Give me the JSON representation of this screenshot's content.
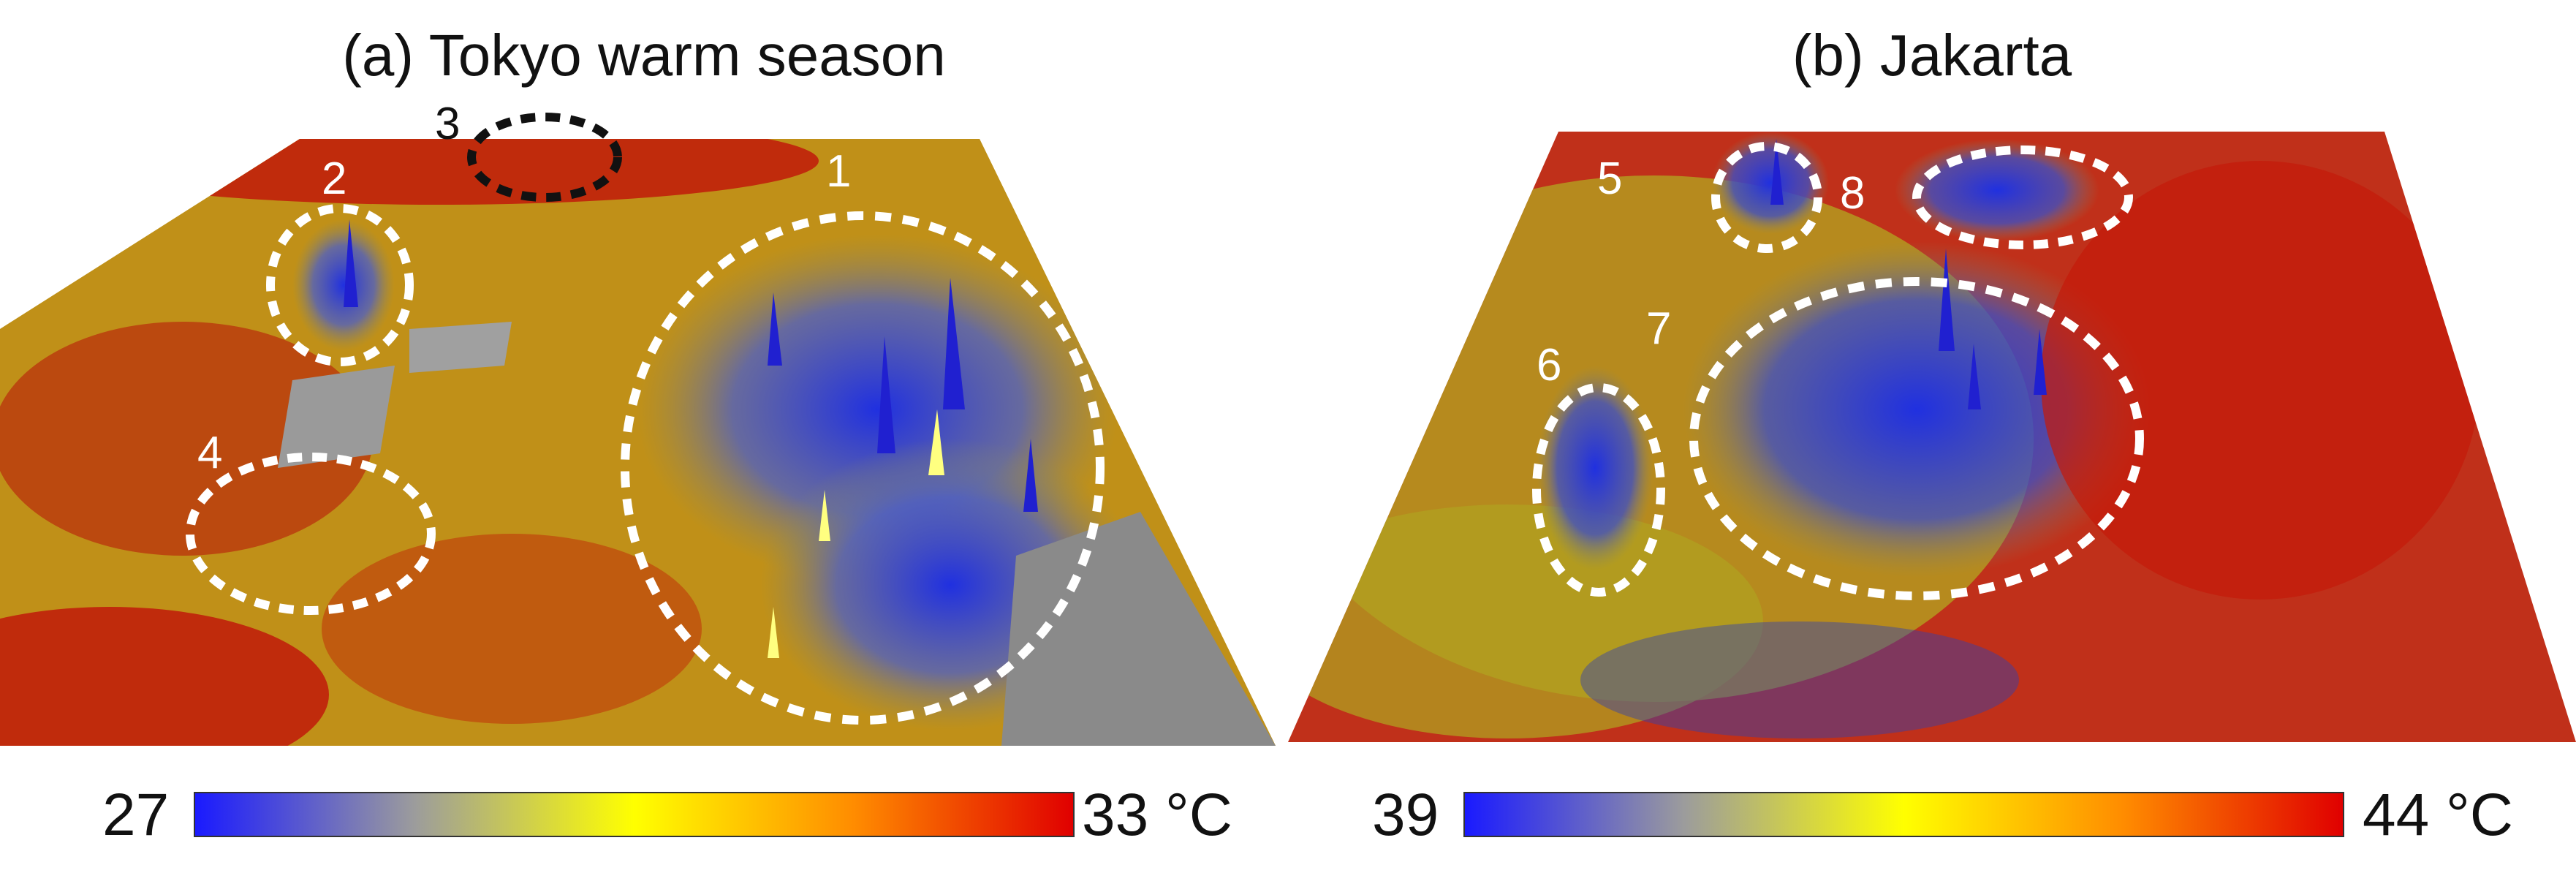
{
  "panels": [
    {
      "title": "(a) Tokyo warm season",
      "colorbar": {
        "min_label": "27",
        "max_label": "33 °C",
        "stops": [
          "#1a1aff",
          "#9c9c9c",
          "#ffff00",
          "#ff8c00",
          "#e00000"
        ]
      },
      "regions": [
        "1",
        "2",
        "3",
        "4"
      ]
    },
    {
      "title": "(b) Jakarta",
      "colorbar": {
        "min_label": "39",
        "max_label": "44 °C",
        "stops": [
          "#1a1aff",
          "#9c9c9c",
          "#ffff00",
          "#ff8c00",
          "#e00000"
        ]
      },
      "regions": [
        "5",
        "6",
        "7",
        "8"
      ]
    }
  ]
}
